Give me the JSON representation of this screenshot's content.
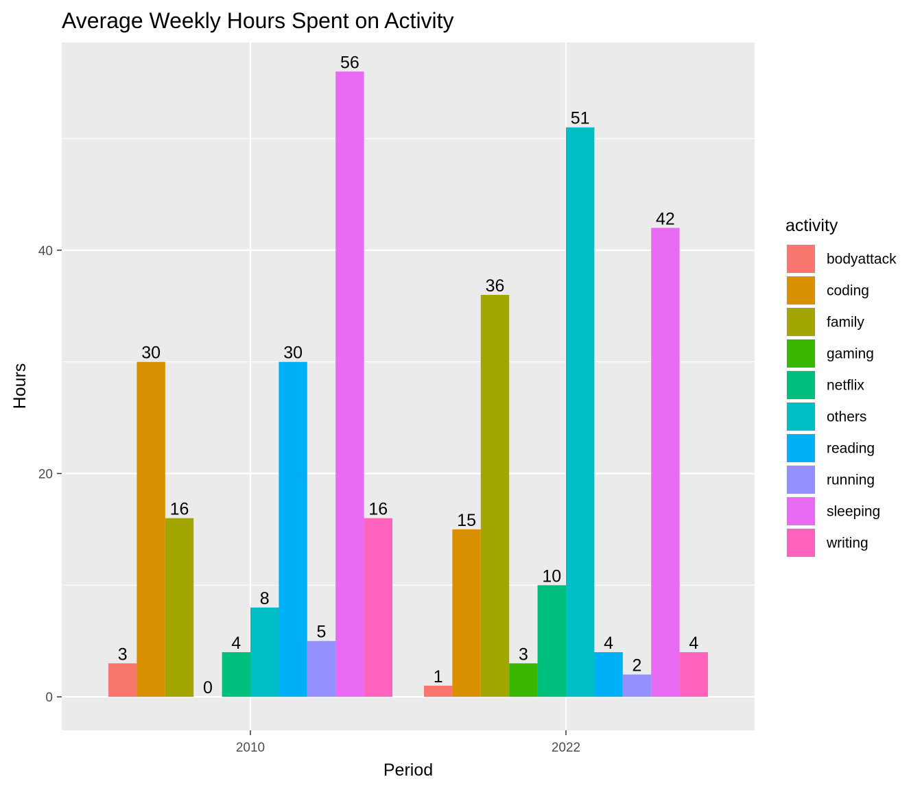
{
  "chart_data": {
    "type": "bar",
    "title": "Average Weekly Hours Spent on Activity",
    "xlabel": "Period",
    "ylabel": "Hours",
    "categories": [
      "2010",
      "2022"
    ],
    "ylim": [
      -3,
      58.6
    ],
    "yticks": [
      0,
      20,
      40
    ],
    "grid": true,
    "legend_position": "right",
    "legend_title": "activity",
    "series": [
      {
        "name": "bodyattack",
        "color": "#F8766D",
        "values": [
          3,
          1
        ]
      },
      {
        "name": "coding",
        "color": "#D89000",
        "values": [
          30,
          15
        ]
      },
      {
        "name": "family",
        "color": "#A3A500",
        "values": [
          16,
          36
        ]
      },
      {
        "name": "gaming",
        "color": "#39B600",
        "values": [
          0,
          3
        ]
      },
      {
        "name": "netflix",
        "color": "#00BF7D",
        "values": [
          4,
          10
        ]
      },
      {
        "name": "others",
        "color": "#00BFC4",
        "values": [
          8,
          51
        ]
      },
      {
        "name": "reading",
        "color": "#00B0F6",
        "values": [
          30,
          4
        ]
      },
      {
        "name": "running",
        "color": "#9590FF",
        "values": [
          5,
          2
        ]
      },
      {
        "name": "sleeping",
        "color": "#E76BF3",
        "values": [
          56,
          42
        ]
      },
      {
        "name": "writing",
        "color": "#FF62BC",
        "values": [
          16,
          4
        ]
      }
    ]
  }
}
